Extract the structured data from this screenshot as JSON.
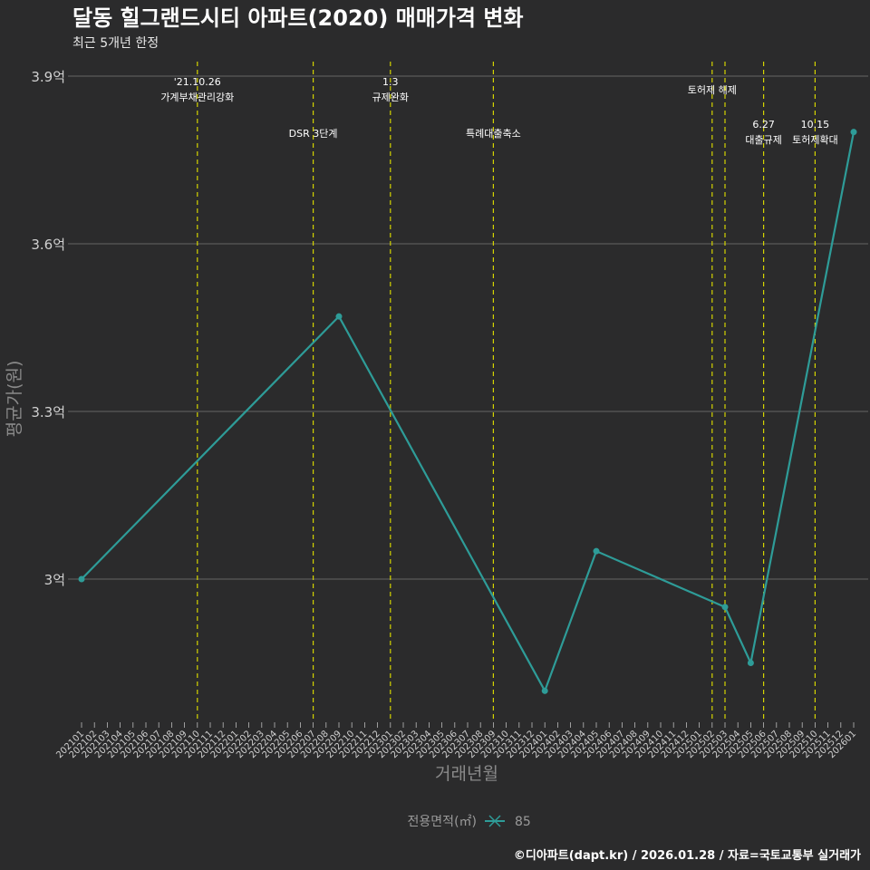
{
  "chart_data": {
    "type": "line",
    "title": "달동 힐그랜드시티 아파트(2020) 매매가격 변화",
    "subtitle": "최근 5개년 한정",
    "xlabel": "거래년월",
    "ylabel": "평균가(원)",
    "x_start": "202101",
    "x_end": "202601",
    "ylim": [
      2.75,
      3.95
    ],
    "y_ticks": [
      3.0,
      3.3,
      3.6,
      3.9
    ],
    "y_tick_labels": [
      "3억",
      "3.3억",
      "3.6억",
      "3.9억"
    ],
    "grid": true,
    "legend": {
      "title": "전용면적(㎡)",
      "placement": "bottom",
      "entries": [
        "85"
      ]
    },
    "series": [
      {
        "name": "85",
        "color": "#2e9c98",
        "points": [
          {
            "x": "202101",
            "y": 3.0
          },
          {
            "x": "202209",
            "y": 3.47
          },
          {
            "x": "202401",
            "y": 2.8
          },
          {
            "x": "202405",
            "y": 3.05
          },
          {
            "x": "202503",
            "y": 2.95
          },
          {
            "x": "202505",
            "y": 2.85
          },
          {
            "x": "202601",
            "y": 3.8
          }
        ]
      }
    ],
    "annotations": [
      {
        "x": "202110",
        "lines": [
          "'21.10.26",
          "가계부채관리강화"
        ],
        "row": "top"
      },
      {
        "x": "202207",
        "lines": [
          "DSR 3단계"
        ],
        "row": "mid"
      },
      {
        "x": "202301",
        "lines": [
          "1.3",
          "규제완화"
        ],
        "row": "top"
      },
      {
        "x": "202309",
        "lines": [
          "특례대출축소"
        ],
        "row": "mid"
      },
      {
        "x": "202502",
        "lines": [
          "토허제 해제"
        ],
        "row": "upper"
      },
      {
        "x": "202503",
        "lines": [],
        "row": "none"
      },
      {
        "x": "202506",
        "lines": [
          "6.27",
          "대출규제"
        ],
        "row": "low"
      },
      {
        "x": "202510",
        "lines": [
          "10.15",
          "토허제확대"
        ],
        "row": "low"
      }
    ],
    "vline_color": "#d4d400"
  },
  "caption": "©디아파트(dapt.kr) / 2026.01.28 / 자료=국토교통부 실거래가"
}
